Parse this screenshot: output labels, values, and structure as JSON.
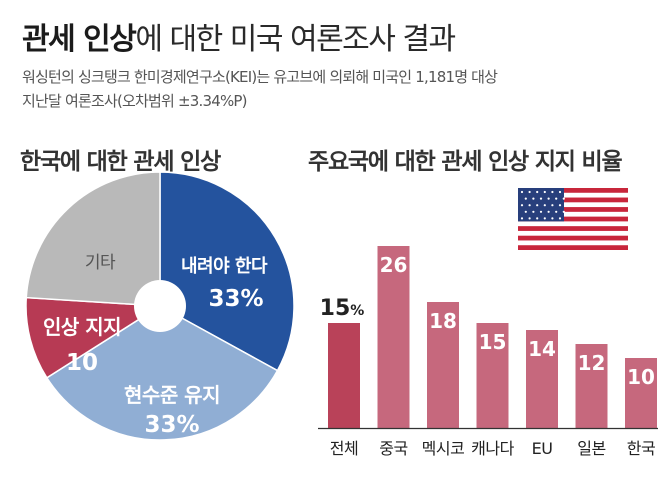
{
  "header": {
    "title_bold": "관세 인상",
    "title_rest": "에 대한 미국 여론조사 결과",
    "subtitle_line1": "워싱턴의 싱크탱크 한미경제연구소(KEI)는 유고브에 의뢰해 미국인 1,181명 대상",
    "subtitle_line2": "지난달 여론조사(오차범위 ±3.34%P)"
  },
  "colors": {
    "dark_blue": "#24539e",
    "light_blue": "#90aed4",
    "gray": "#b9b9b9",
    "crimson": "#b73a54",
    "bar_pink": "#c6687d",
    "bar_first": "#b94259"
  },
  "chart_data": [
    {
      "type": "pie",
      "title": "한국에 대한 관세 인상",
      "slices": [
        {
          "label": "내려야 한다",
          "value": 33,
          "value_text": "33%",
          "color": "#24539e"
        },
        {
          "label": "현수준 유지",
          "value": 33,
          "value_text": "33%",
          "color": "#90aed4"
        },
        {
          "label": "인상 지지",
          "value": 10,
          "value_text": "10",
          "color": "#b73a54"
        },
        {
          "label": "기타",
          "value": 24,
          "value_text": "",
          "color": "#b9b9b9"
        }
      ]
    },
    {
      "type": "bar",
      "title": "주요국에 대한 관세 인상 지지 비율",
      "categories": [
        "전체",
        "중국",
        "멕시코",
        "캐나다",
        "EU",
        "일본",
        "한국"
      ],
      "values": [
        15,
        26,
        18,
        15,
        14,
        12,
        10
      ],
      "value_labels": [
        "15",
        "26",
        "18",
        "15",
        "14",
        "12",
        "10"
      ],
      "first_unit": "%",
      "ylim": [
        0,
        28
      ],
      "flag_icon": "us-flag-icon"
    }
  ]
}
